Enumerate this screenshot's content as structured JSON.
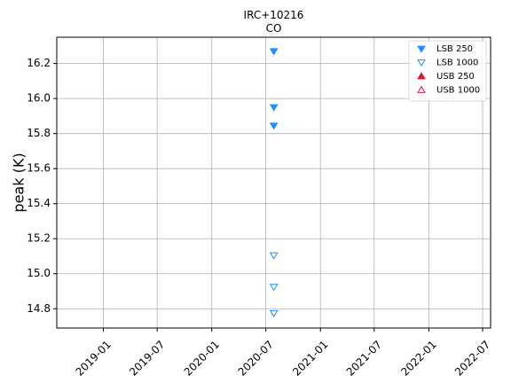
{
  "chart_data": {
    "type": "scatter",
    "title_lines": [
      "IRC+10216",
      "CO"
    ],
    "xlabel": "",
    "ylabel": "peak (K)",
    "xlim": [
      "2018-07-28",
      "2022-07-28"
    ],
    "ylim": [
      14.69,
      16.35
    ],
    "grid": true,
    "legend_position": "top-right",
    "x_ticks": [
      "2019-01",
      "2019-07",
      "2020-01",
      "2020-07",
      "2021-01",
      "2021-07",
      "2022-01",
      "2022-07"
    ],
    "y_ticks": [
      14.8,
      15.0,
      15.2,
      15.4,
      15.6,
      15.8,
      16.0,
      16.2
    ],
    "series": [
      {
        "name": "LSB 250",
        "marker": "triangle-down",
        "filled": true,
        "color": "#1e90ff",
        "points": [
          {
            "x": "2020-07-28",
            "y": 16.27
          },
          {
            "x": "2020-07-28",
            "y": 15.95
          },
          {
            "x": "2020-07-28",
            "y": 15.845
          }
        ]
      },
      {
        "name": "LSB 1000",
        "marker": "triangle-down",
        "filled": false,
        "color": "#1e90ff",
        "points": [
          {
            "x": "2020-07-28",
            "y": 15.105
          },
          {
            "x": "2020-07-28",
            "y": 14.925
          },
          {
            "x": "2020-07-28",
            "y": 14.775
          }
        ]
      },
      {
        "name": "USB 250",
        "marker": "triangle-up",
        "filled": true,
        "color": "#dc143c",
        "points": []
      },
      {
        "name": "USB 1000",
        "marker": "triangle-up",
        "filled": false,
        "color": "#dc143c",
        "points": []
      }
    ]
  }
}
